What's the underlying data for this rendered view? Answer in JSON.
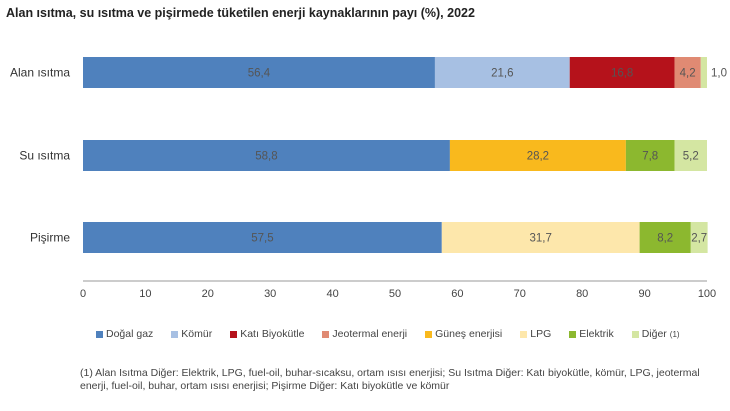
{
  "chart_data": {
    "type": "bar",
    "orientation": "horizontal-stacked",
    "title": "Alan ısıtma, su ısıtma ve pişirmede tüketilen enerji kaynaklarının payı (%), 2022",
    "xlim": [
      0,
      100
    ],
    "xticks": [
      0,
      10,
      20,
      30,
      40,
      50,
      60,
      70,
      80,
      90,
      100
    ],
    "categories": [
      "Alan ısıtma",
      "Su ısıtma",
      "Pişirme"
    ],
    "legend": [
      {
        "name": "Doğal gaz",
        "color": "#4f81bd"
      },
      {
        "name": "Kömür",
        "color": "#a7c0e3"
      },
      {
        "name": "Katı Biyokütle",
        "color": "#b5121b"
      },
      {
        "name": "Jeotermal enerji",
        "color": "#e08a73"
      },
      {
        "name": "Güneş enerjisi",
        "color": "#f9b91d"
      },
      {
        "name": "LPG",
        "color": "#fde7ab"
      },
      {
        "name": "Elektrik",
        "color": "#8cb82f"
      },
      {
        "name": "Diğer",
        "sup": "(1)",
        "color": "#d4e6a2"
      }
    ],
    "rows": [
      {
        "segments": [
          {
            "s": 0,
            "v": 56.4,
            "label": "56,4"
          },
          {
            "s": 1,
            "v": 21.6,
            "label": "21,6"
          },
          {
            "s": 2,
            "v": 16.8,
            "label": "16,8"
          },
          {
            "s": 3,
            "v": 4.2,
            "label": "4,2"
          },
          {
            "s": 7,
            "v": 1.0,
            "label": "1,0"
          }
        ]
      },
      {
        "segments": [
          {
            "s": 0,
            "v": 58.8,
            "label": "58,8"
          },
          {
            "s": 4,
            "v": 28.2,
            "label": "28,2"
          },
          {
            "s": 6,
            "v": 7.8,
            "label": "7,8"
          },
          {
            "s": 7,
            "v": 5.2,
            "label": "5,2"
          }
        ]
      },
      {
        "segments": [
          {
            "s": 0,
            "v": 57.5,
            "label": "57,5"
          },
          {
            "s": 5,
            "v": 31.7,
            "label": "31,7"
          },
          {
            "s": 6,
            "v": 8.2,
            "label": "8,2"
          },
          {
            "s": 7,
            "v": 2.7,
            "label": "2,7"
          }
        ]
      }
    ],
    "legend_position": "bottom"
  },
  "note": "(1) Alan Isıtma Diğer: Elektrik, LPG, fuel-oil, buhar-sıcaksu, ortam ısısı enerjisi; Su Isıtma Diğer: Katı biyokütle, kömür, LPG, jeotermal enerji,  fuel-oil, buhar, ortam ısısı enerjisi; Pişirme Diğer: Katı biyokütle ve kömür"
}
